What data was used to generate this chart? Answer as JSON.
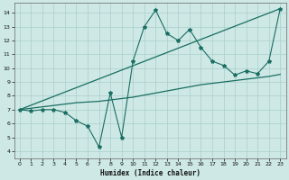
{
  "x": [
    0,
    1,
    2,
    3,
    4,
    5,
    6,
    7,
    8,
    9,
    10,
    11,
    12,
    13,
    14,
    15,
    16,
    17,
    18,
    19,
    20,
    21,
    22,
    23
  ],
  "line1_y": [
    7.0,
    6.9,
    7.0,
    7.0,
    6.8,
    6.2,
    5.8,
    4.3,
    8.2,
    5.0,
    10.5,
    13.0,
    14.2,
    12.5,
    12.0,
    12.8,
    11.5,
    10.5,
    10.2,
    9.5,
    9.8,
    9.6,
    10.5,
    14.3
  ],
  "line2_x": [
    0,
    23
  ],
  "line2_y": [
    7.0,
    14.3
  ],
  "line3_x": [
    0,
    1,
    2,
    3,
    4,
    5,
    6,
    7,
    8,
    9,
    10,
    11,
    12,
    13,
    14,
    15,
    16,
    17,
    18,
    19,
    20,
    21,
    22,
    23
  ],
  "line3_y": [
    7.0,
    7.1,
    7.2,
    7.3,
    7.4,
    7.5,
    7.55,
    7.6,
    7.7,
    7.8,
    7.9,
    8.05,
    8.2,
    8.35,
    8.5,
    8.65,
    8.8,
    8.9,
    9.0,
    9.1,
    9.2,
    9.3,
    9.4,
    9.55
  ],
  "background_color": "#cde8e5",
  "grid_color": "#aacfcc",
  "line_color": "#1a6e62",
  "xlabel": "Humidex (Indice chaleur)",
  "ylim": [
    3.5,
    14.7
  ],
  "xlim": [
    -0.5,
    23.5
  ],
  "yticks": [
    4,
    5,
    6,
    7,
    8,
    9,
    10,
    11,
    12,
    13,
    14
  ],
  "xticks": [
    0,
    1,
    2,
    3,
    4,
    5,
    6,
    7,
    8,
    9,
    10,
    11,
    12,
    13,
    14,
    15,
    16,
    17,
    18,
    19,
    20,
    21,
    22,
    23
  ]
}
